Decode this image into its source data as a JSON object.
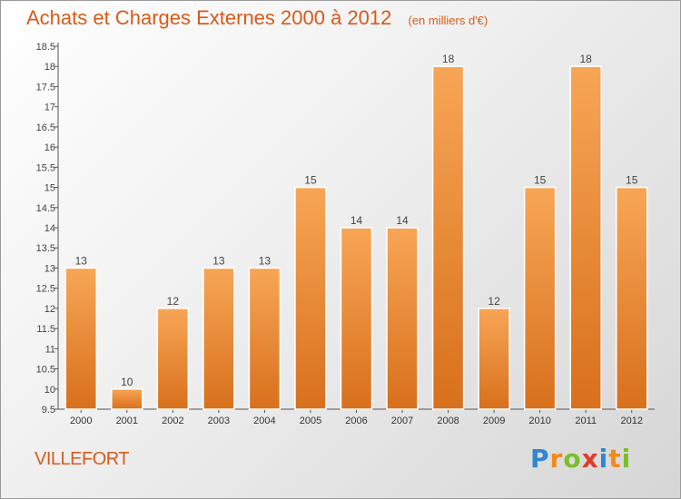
{
  "chart_data": {
    "type": "bar",
    "title": "Achats et Charges Externes 2000 à 2012",
    "subtitle": "(en milliers d'€)",
    "categories": [
      "2000",
      "2001",
      "2002",
      "2003",
      "2004",
      "2005",
      "2006",
      "2007",
      "2008",
      "2009",
      "2010",
      "2011",
      "2012"
    ],
    "values": [
      13,
      10,
      12,
      13,
      13,
      15,
      14,
      14,
      18,
      12,
      15,
      18,
      15
    ],
    "data_labels": [
      "13",
      "10",
      "12",
      "13",
      "13",
      "15",
      "14",
      "14",
      "18",
      "12",
      "15",
      "18",
      "15"
    ],
    "ylim": [
      9.5,
      18.5
    ],
    "yticks": [
      9.5,
      10,
      10.5,
      11,
      11.5,
      12,
      12.5,
      13,
      13.5,
      14,
      14.5,
      15,
      15.5,
      16,
      16.5,
      17,
      17.5,
      18,
      18.5
    ],
    "ytick_labels": [
      "9.5",
      "10",
      "10.5",
      "11",
      "11.5",
      "12",
      "12.5",
      "13",
      "13.5",
      "14",
      "14.5",
      "15",
      "15.5",
      "16",
      "16.5",
      "17",
      "17.5",
      "18",
      "18.5"
    ],
    "grid": false,
    "bar_color_top": "#f7a656",
    "bar_color_bottom": "#d8701c"
  },
  "location": "VILLEFORT",
  "logo": {
    "letters": [
      "P",
      "r",
      "o",
      "x",
      "i",
      "t",
      "i"
    ],
    "colors": [
      "#2f86d6",
      "#f08a1c",
      "#7bbf2a",
      "#e23a28",
      "#2f86d6",
      "#f08a1c",
      "#7bbf2a"
    ]
  },
  "colors": {
    "accent": "#d85a1a",
    "axis": "#555555"
  }
}
